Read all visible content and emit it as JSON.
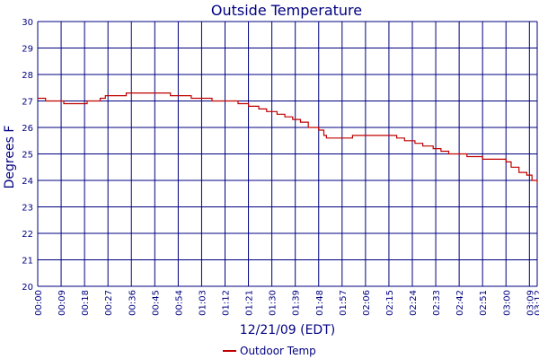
{
  "colors": {
    "grid": "#000080",
    "text": "#000080",
    "series": "#c00000",
    "background": "#ffffff"
  },
  "chart_data": {
    "type": "line",
    "title": "Outside Temperature",
    "xlabel": "12/21/09 (EDT)",
    "ylabel": "Degrees F",
    "ylim": [
      20,
      30
    ],
    "yticks": [
      20,
      21,
      22,
      23,
      24,
      25,
      26,
      27,
      28,
      29,
      30
    ],
    "xlim_minutes": [
      0,
      192
    ],
    "xticks": [
      {
        "m": 0,
        "label": "00:00"
      },
      {
        "m": 9,
        "label": "00:09"
      },
      {
        "m": 18,
        "label": "00:18"
      },
      {
        "m": 27,
        "label": "00:27"
      },
      {
        "m": 36,
        "label": "00:36"
      },
      {
        "m": 45,
        "label": "00:45"
      },
      {
        "m": 54,
        "label": "00:54"
      },
      {
        "m": 63,
        "label": "01:03"
      },
      {
        "m": 72,
        "label": "01:12"
      },
      {
        "m": 81,
        "label": "01:21"
      },
      {
        "m": 90,
        "label": "01:30"
      },
      {
        "m": 99,
        "label": "01:39"
      },
      {
        "m": 108,
        "label": "01:48"
      },
      {
        "m": 117,
        "label": "01:57"
      },
      {
        "m": 126,
        "label": "02:06"
      },
      {
        "m": 135,
        "label": "02:15"
      },
      {
        "m": 144,
        "label": "02:24"
      },
      {
        "m": 153,
        "label": "02:33"
      },
      {
        "m": 162,
        "label": "02:42"
      },
      {
        "m": 171,
        "label": "02:51"
      },
      {
        "m": 180,
        "label": "03:00"
      },
      {
        "m": 189,
        "label": "03:09"
      },
      {
        "m": 192,
        "label": "03:12"
      }
    ],
    "grid": true,
    "legend_position": "bottom-center",
    "series": [
      {
        "name": "Outdoor Temp",
        "points": [
          {
            "t": "00:00",
            "y": 27.1
          },
          {
            "t": "00:02",
            "y": 27.1
          },
          {
            "t": "00:03",
            "y": 27.0
          },
          {
            "t": "00:09",
            "y": 27.0
          },
          {
            "t": "00:10",
            "y": 26.9
          },
          {
            "t": "00:18",
            "y": 26.9
          },
          {
            "t": "00:19",
            "y": 27.0
          },
          {
            "t": "00:23",
            "y": 27.0
          },
          {
            "t": "00:24",
            "y": 27.1
          },
          {
            "t": "00:26",
            "y": 27.2
          },
          {
            "t": "00:33",
            "y": 27.2
          },
          {
            "t": "00:34",
            "y": 27.3
          },
          {
            "t": "00:50",
            "y": 27.3
          },
          {
            "t": "00:51",
            "y": 27.2
          },
          {
            "t": "00:58",
            "y": 27.2
          },
          {
            "t": "00:59",
            "y": 27.1
          },
          {
            "t": "01:06",
            "y": 27.1
          },
          {
            "t": "01:07",
            "y": 27.0
          },
          {
            "t": "01:14",
            "y": 27.0
          },
          {
            "t": "01:17",
            "y": 26.9
          },
          {
            "t": "01:21",
            "y": 26.8
          },
          {
            "t": "01:25",
            "y": 26.7
          },
          {
            "t": "01:28",
            "y": 26.6
          },
          {
            "t": "01:32",
            "y": 26.5
          },
          {
            "t": "01:35",
            "y": 26.4
          },
          {
            "t": "01:38",
            "y": 26.3
          },
          {
            "t": "01:41",
            "y": 26.2
          },
          {
            "t": "01:44",
            "y": 26.0
          },
          {
            "t": "01:48",
            "y": 25.9
          },
          {
            "t": "01:50",
            "y": 25.7
          },
          {
            "t": "01:51",
            "y": 25.6
          },
          {
            "t": "02:00",
            "y": 25.6
          },
          {
            "t": "02:01",
            "y": 25.7
          },
          {
            "t": "02:17",
            "y": 25.7
          },
          {
            "t": "02:18",
            "y": 25.6
          },
          {
            "t": "02:21",
            "y": 25.5
          },
          {
            "t": "02:25",
            "y": 25.4
          },
          {
            "t": "02:28",
            "y": 25.3
          },
          {
            "t": "02:32",
            "y": 25.2
          },
          {
            "t": "02:35",
            "y": 25.1
          },
          {
            "t": "02:38",
            "y": 25.0
          },
          {
            "t": "02:44",
            "y": 25.0
          },
          {
            "t": "02:45",
            "y": 24.9
          },
          {
            "t": "02:50",
            "y": 24.9
          },
          {
            "t": "02:51",
            "y": 24.8
          },
          {
            "t": "02:58",
            "y": 24.8
          },
          {
            "t": "03:00",
            "y": 24.7
          },
          {
            "t": "03:02",
            "y": 24.5
          },
          {
            "t": "03:05",
            "y": 24.3
          },
          {
            "t": "03:08",
            "y": 24.2
          },
          {
            "t": "03:10",
            "y": 24.0
          },
          {
            "t": "03:12",
            "y": 23.9
          }
        ]
      }
    ]
  }
}
